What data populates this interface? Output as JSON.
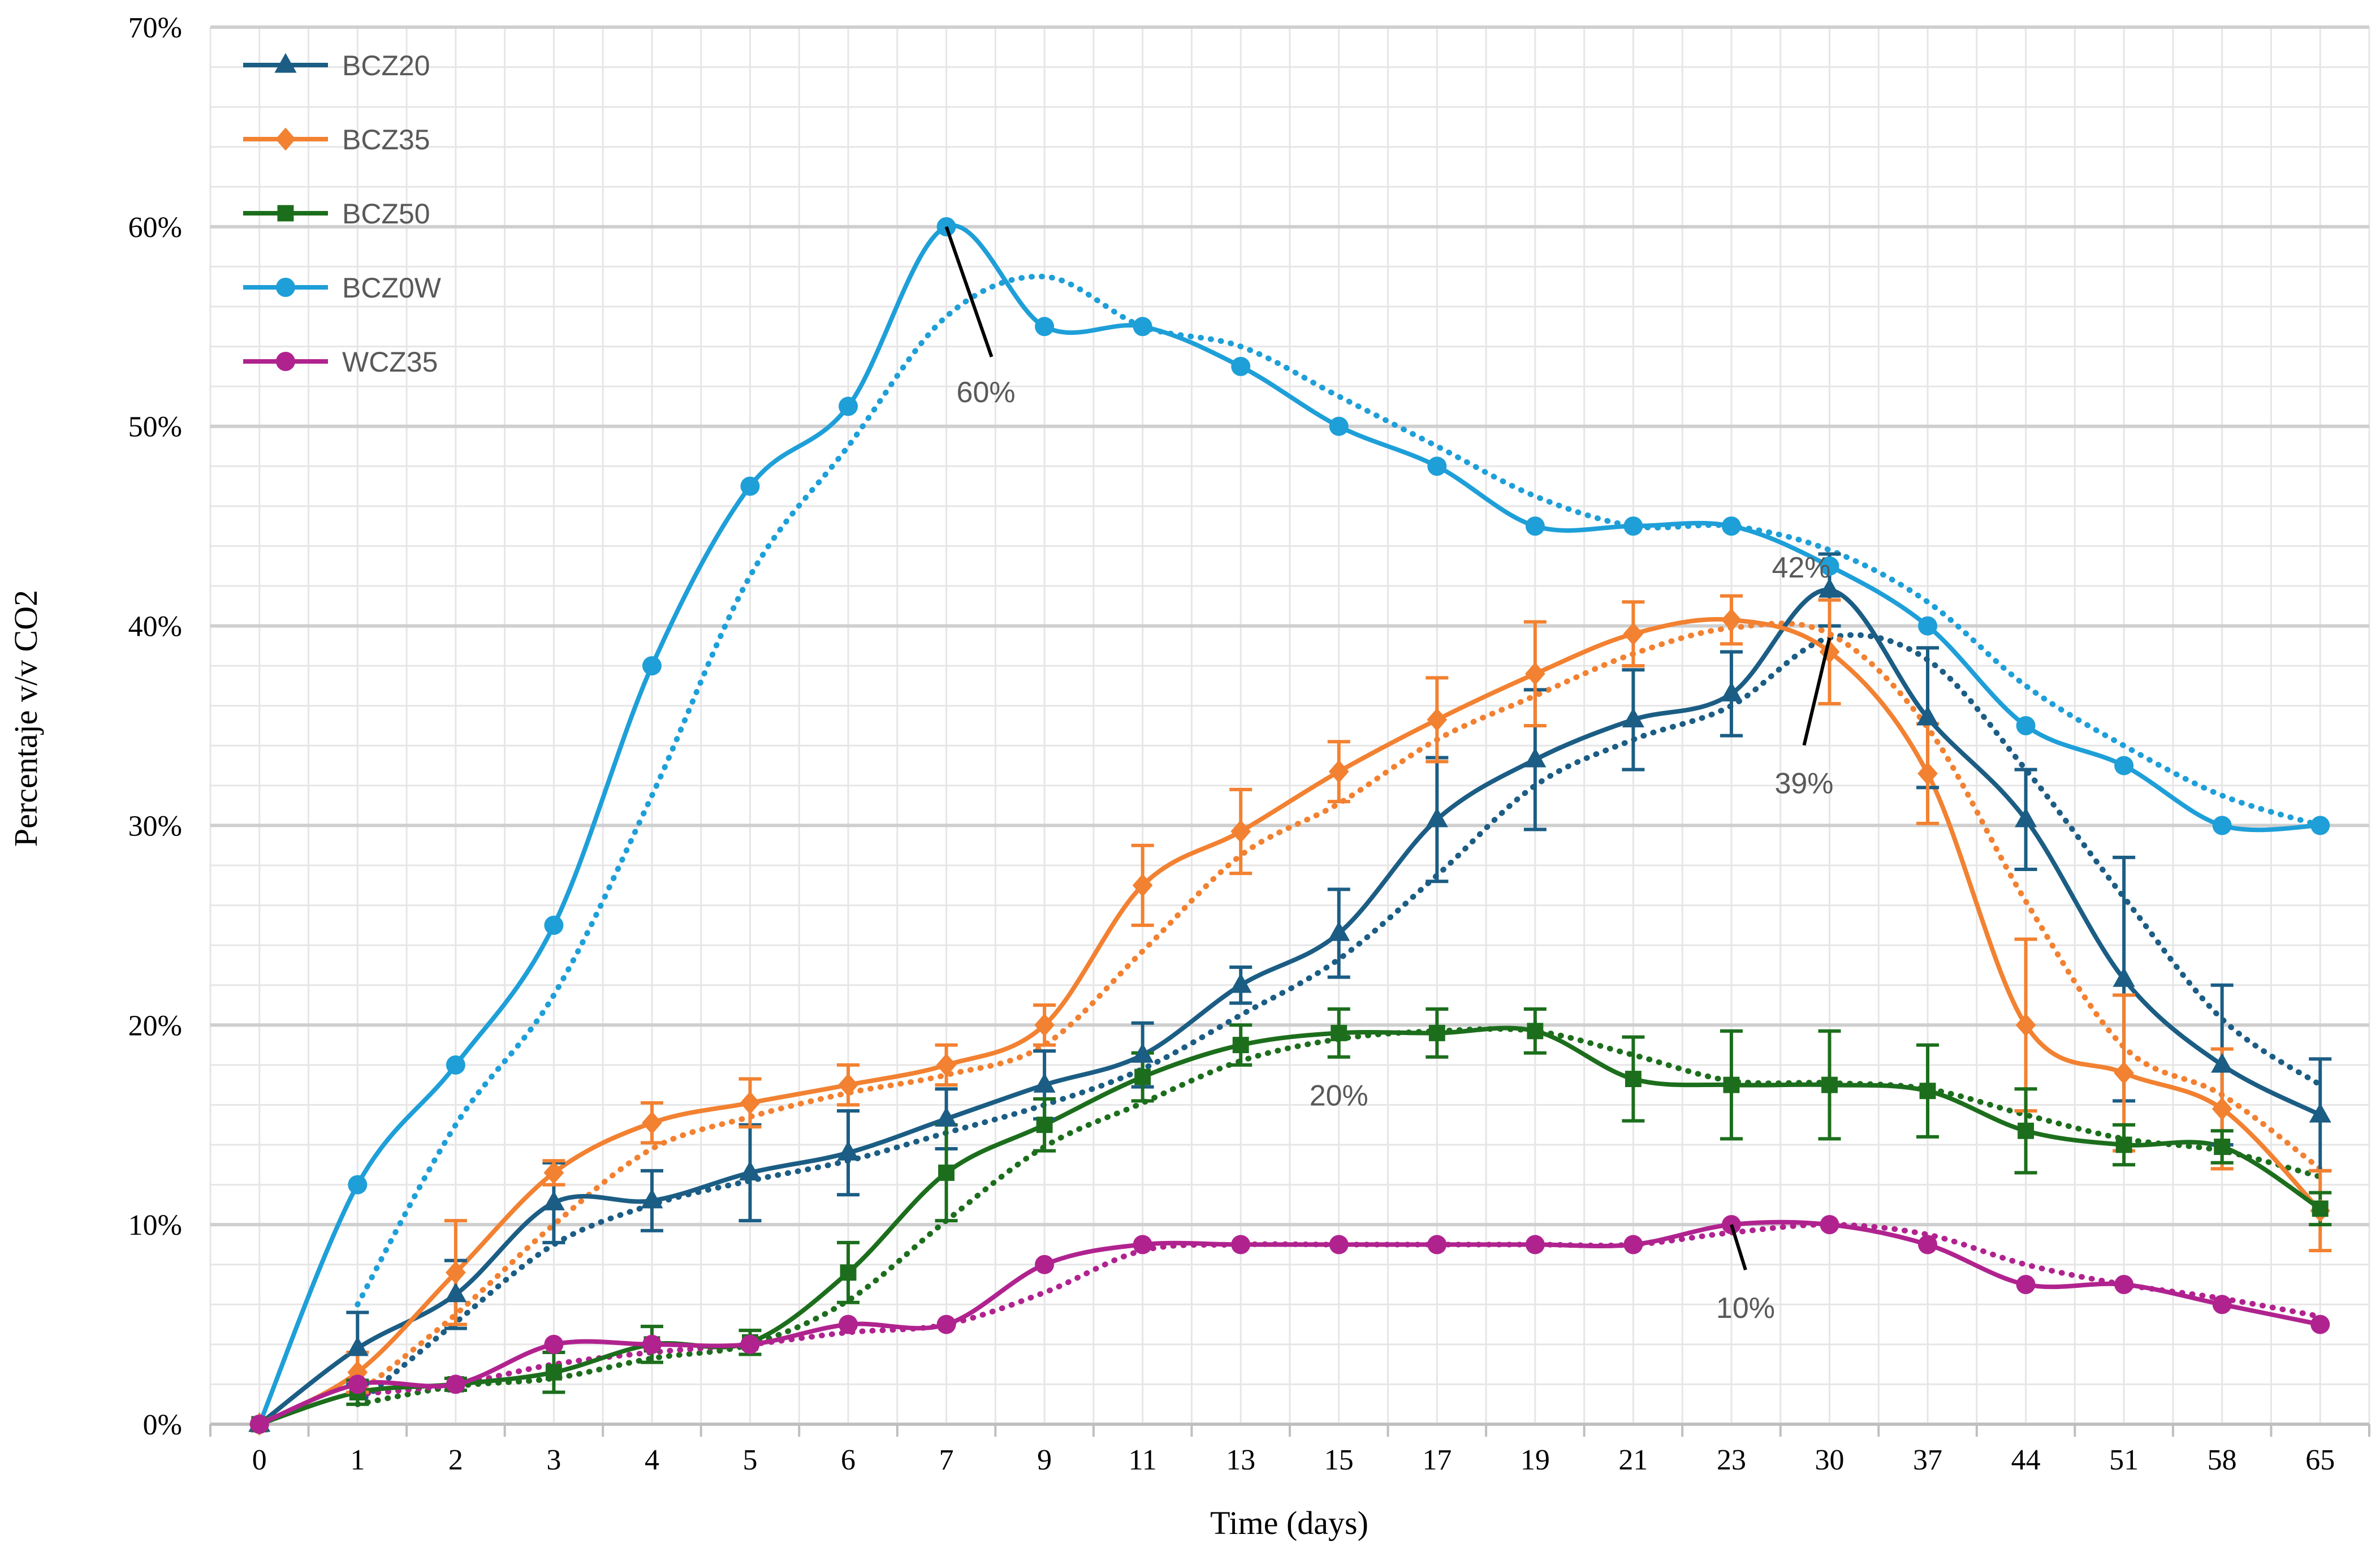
{
  "chart_data": {
    "type": "line",
    "title": "",
    "xlabel": "Time (days)",
    "ylabel": "Percentaje v/v CO2",
    "categories": [
      "0",
      "1",
      "2",
      "3",
      "4",
      "5",
      "6",
      "7",
      "9",
      "11",
      "13",
      "15",
      "17",
      "19",
      "21",
      "23",
      "30",
      "37",
      "44",
      "51",
      "58",
      "65"
    ],
    "yticks": [
      "0%",
      "10%",
      "20%",
      "30%",
      "40%",
      "50%",
      "60%",
      "70%"
    ],
    "ylim": [
      0,
      70
    ],
    "grid": true,
    "legend_position": "top-left",
    "series": [
      {
        "name": "BCZ20",
        "color": "#1b5d84",
        "marker": "triangle",
        "values": [
          0,
          3.8,
          6.5,
          11.1,
          11.2,
          12.6,
          13.6,
          15.3,
          17,
          18.5,
          22,
          24.6,
          30.3,
          33.3,
          35.3,
          36.6,
          41.8,
          35.4,
          30.3,
          22.3,
          18,
          15.5
        ],
        "errors": [
          0,
          1.8,
          1.7,
          2.0,
          1.5,
          2.4,
          2.1,
          1.5,
          1.7,
          1.6,
          0.9,
          2.2,
          3.1,
          3.5,
          2.5,
          2.1,
          1.8,
          3.5,
          2.5,
          6.1,
          4.0,
          2.8
        ],
        "trend": [
          0,
          1.0,
          5.1,
          9.0,
          11.0,
          12.2,
          13.2,
          14.6,
          16.0,
          17.8,
          20.5,
          23.3,
          27.5,
          32.0,
          34.3,
          36.0,
          39.4,
          38.3,
          32.8,
          26.4,
          20.3,
          17.0
        ]
      },
      {
        "name": "BCZ35",
        "color": "#f28131",
        "marker": "diamond",
        "values": [
          0,
          2.6,
          7.6,
          12.6,
          15.1,
          16.1,
          17.0,
          18.0,
          20.0,
          27.0,
          29.7,
          32.7,
          35.3,
          37.6,
          39.6,
          40.3,
          38.7,
          32.6,
          20.0,
          17.6,
          15.8,
          10.7
        ],
        "errors": [
          0,
          1.0,
          2.6,
          0.6,
          1.0,
          1.2,
          1.0,
          1.0,
          1.0,
          2.0,
          2.1,
          1.5,
          2.1,
          2.6,
          1.6,
          1.2,
          2.6,
          2.5,
          4.3,
          3.9,
          3.0,
          2.0
        ],
        "trend": [
          0,
          1.5,
          5.5,
          10.0,
          13.8,
          15.4,
          16.6,
          17.5,
          19.0,
          23.7,
          28.5,
          31.1,
          34.3,
          36.5,
          38.6,
          39.9,
          39.6,
          34.9,
          26.2,
          18.9,
          16.5,
          12.8
        ]
      },
      {
        "name": "BCZ50",
        "color": "#1c6e1c",
        "marker": "square",
        "values": [
          0,
          1.6,
          2.0,
          2.6,
          4.0,
          4.1,
          7.6,
          12.6,
          15.0,
          17.4,
          19.0,
          19.6,
          19.6,
          19.7,
          17.3,
          17.0,
          17.0,
          16.7,
          14.7,
          14.0,
          13.9,
          10.8
        ],
        "errors": [
          0,
          0.6,
          0.3,
          1.0,
          0.9,
          0.6,
          1.5,
          2.4,
          1.3,
          1.2,
          1.0,
          1.2,
          1.2,
          1.1,
          2.1,
          2.7,
          2.7,
          2.3,
          2.1,
          1.0,
          0.8,
          0.8
        ],
        "trend": [
          0,
          1.0,
          1.9,
          2.3,
          3.3,
          4.0,
          6.2,
          10.2,
          13.9,
          16.1,
          18.2,
          19.3,
          19.7,
          19.7,
          18.5,
          17.2,
          17.1,
          16.8,
          15.5,
          14.3,
          13.7,
          12.4
        ]
      },
      {
        "name": "BCZ0W",
        "color": "#1e9fd8",
        "marker": "circle",
        "values": [
          0,
          12,
          18,
          25,
          38,
          47,
          51,
          60,
          55,
          55,
          53,
          50,
          48,
          45,
          45,
          45,
          43,
          40,
          35,
          33,
          30,
          30
        ],
        "errors": [],
        "trend": [
          0,
          6.0,
          15.0,
          21.5,
          31.5,
          42.5,
          49.0,
          55.5,
          57.5,
          55.0,
          54.0,
          51.5,
          49.0,
          46.5,
          45.0,
          45.0,
          43.8,
          41.2,
          37.0,
          34.0,
          31.5,
          30.0
        ]
      },
      {
        "name": "WCZ35",
        "color": "#b0238f",
        "marker": "circle",
        "values": [
          0,
          2.0,
          2.0,
          4.0,
          4.0,
          4.0,
          5.0,
          5.0,
          8.0,
          9.0,
          9.0,
          9.0,
          9.0,
          9.0,
          9.0,
          10.0,
          10.0,
          9.0,
          7.0,
          7.0,
          6.0,
          5.0
        ],
        "errors": [],
        "trend": [
          0,
          1.5,
          2.0,
          3.0,
          3.6,
          4.0,
          4.6,
          5.0,
          6.6,
          8.7,
          9.0,
          9.0,
          9.0,
          9.0,
          9.0,
          9.6,
          10.0,
          9.5,
          8.0,
          7.0,
          6.3,
          5.4
        ]
      }
    ],
    "annotations": [
      {
        "text": "60%",
        "x": "7",
        "y": 60
      },
      {
        "text": "42%",
        "x": "30",
        "y": 41.8
      },
      {
        "text": "39%",
        "x": "30",
        "y": 39.4
      },
      {
        "text": "20%",
        "x": "15",
        "y": 19.6
      },
      {
        "text": "10%",
        "x": "23",
        "y": 10.0
      }
    ]
  }
}
